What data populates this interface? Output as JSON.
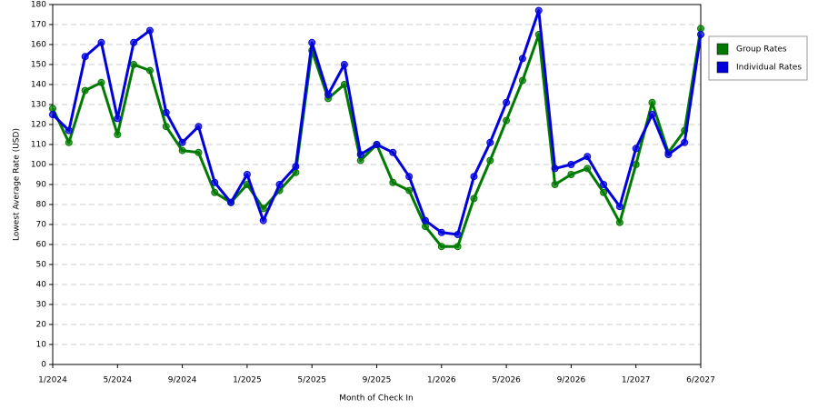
{
  "chart_data": {
    "type": "line",
    "x_label": "Month of Check In",
    "y_label": "Lowest Average Rate (USD)",
    "categories": [
      "1/2024",
      null,
      null,
      null,
      "5/2024",
      null,
      null,
      null,
      "9/2024",
      null,
      null,
      null,
      "1/2025",
      null,
      null,
      null,
      "5/2025",
      null,
      null,
      null,
      "9/2025",
      null,
      null,
      null,
      "1/2026",
      null,
      null,
      null,
      "5/2026",
      null,
      null,
      null,
      "9/2026",
      null,
      null,
      null,
      "1/2027",
      null,
      null,
      null,
      "6/2027"
    ],
    "series": [
      {
        "name": "Group Rates",
        "color": "#007a00",
        "values": [
          128,
          111,
          137,
          141,
          115,
          150,
          147,
          119,
          107,
          106,
          86,
          81,
          90,
          78,
          87,
          96,
          157,
          133,
          140,
          102,
          110,
          91,
          87,
          69,
          59,
          59,
          83,
          102,
          122,
          142,
          165,
          90,
          95,
          98,
          86,
          71,
          100,
          131,
          106,
          117,
          168
        ]
      },
      {
        "name": "Individual Rates",
        "color": "#0000dd",
        "values": [
          125,
          117,
          154,
          161,
          123,
          161,
          167,
          126,
          111,
          119,
          91,
          81,
          95,
          72,
          90,
          99,
          161,
          135,
          150,
          105,
          110,
          106,
          94,
          72,
          66,
          65,
          94,
          111,
          131,
          153,
          177,
          98,
          100,
          104,
          90,
          79,
          108,
          125,
          105,
          111,
          165
        ]
      }
    ],
    "ylim": [
      0,
      180
    ],
    "yticks": [
      0,
      10,
      20,
      30,
      40,
      50,
      60,
      70,
      80,
      90,
      100,
      110,
      120,
      130,
      140,
      150,
      160,
      170,
      180
    ],
    "grid": true,
    "legend": "right"
  }
}
